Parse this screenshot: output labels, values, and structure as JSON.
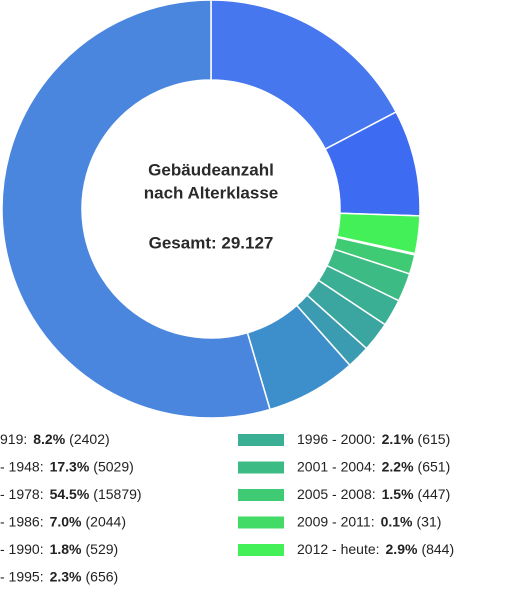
{
  "chart_data": {
    "type": "donut",
    "center_title": [
      "Gebäudeanzahl",
      "nach Alterklasse"
    ],
    "total_label": "Gesamt: 29.127",
    "series": [
      {
        "name": "- 1948:",
        "color": "#4677ef",
        "value": 17.3,
        "value_label": "17.3%",
        "count": 5029,
        "count_label": "(5029)"
      },
      {
        "name": "919:",
        "color": "#3d6cf3",
        "value": 8.2,
        "value_label": "8.2%",
        "count": 2402,
        "count_label": "(2402)"
      },
      {
        "name": "2012 - heute:",
        "color": "#44f058",
        "value": 2.9,
        "value_label": "2.9%",
        "count": 844,
        "count_label": "(844)"
      },
      {
        "name": "2009 - 2011:",
        "color": "#41db66",
        "value": 0.1,
        "value_label": "0.1%",
        "count": 31,
        "count_label": "(31)"
      },
      {
        "name": "2005 - 2008:",
        "color": "#3fcb74",
        "value": 1.5,
        "value_label": "1.5%",
        "count": 447,
        "count_label": "(447)"
      },
      {
        "name": "2001 - 2004:",
        "color": "#3dbb84",
        "value": 2.2,
        "value_label": "2.2%",
        "count": 651,
        "count_label": "(651)"
      },
      {
        "name": "1996 - 2000:",
        "color": "#3aaf94",
        "value": 2.1,
        "value_label": "2.1%",
        "count": 615,
        "count_label": "(615)"
      },
      {
        "name": "- 1995:",
        "color": "#3aa69f",
        "value": 2.3,
        "value_label": "2.3%",
        "count": 656,
        "count_label": "(656)"
      },
      {
        "name": "- 1990:",
        "color": "#3b9bb1",
        "value": 1.8,
        "value_label": "1.8%",
        "count": 529,
        "count_label": "(529)"
      },
      {
        "name": "- 1986:",
        "color": "#3d8fcc",
        "value": 7.0,
        "value_label": "7.0%",
        "count": 2044,
        "count_label": "(2044)"
      },
      {
        "name": "- 1978:",
        "color": "#4a86dd",
        "value": 54.5,
        "value_label": "54.5%",
        "count": 15879,
        "count_label": "(15879)"
      }
    ]
  }
}
